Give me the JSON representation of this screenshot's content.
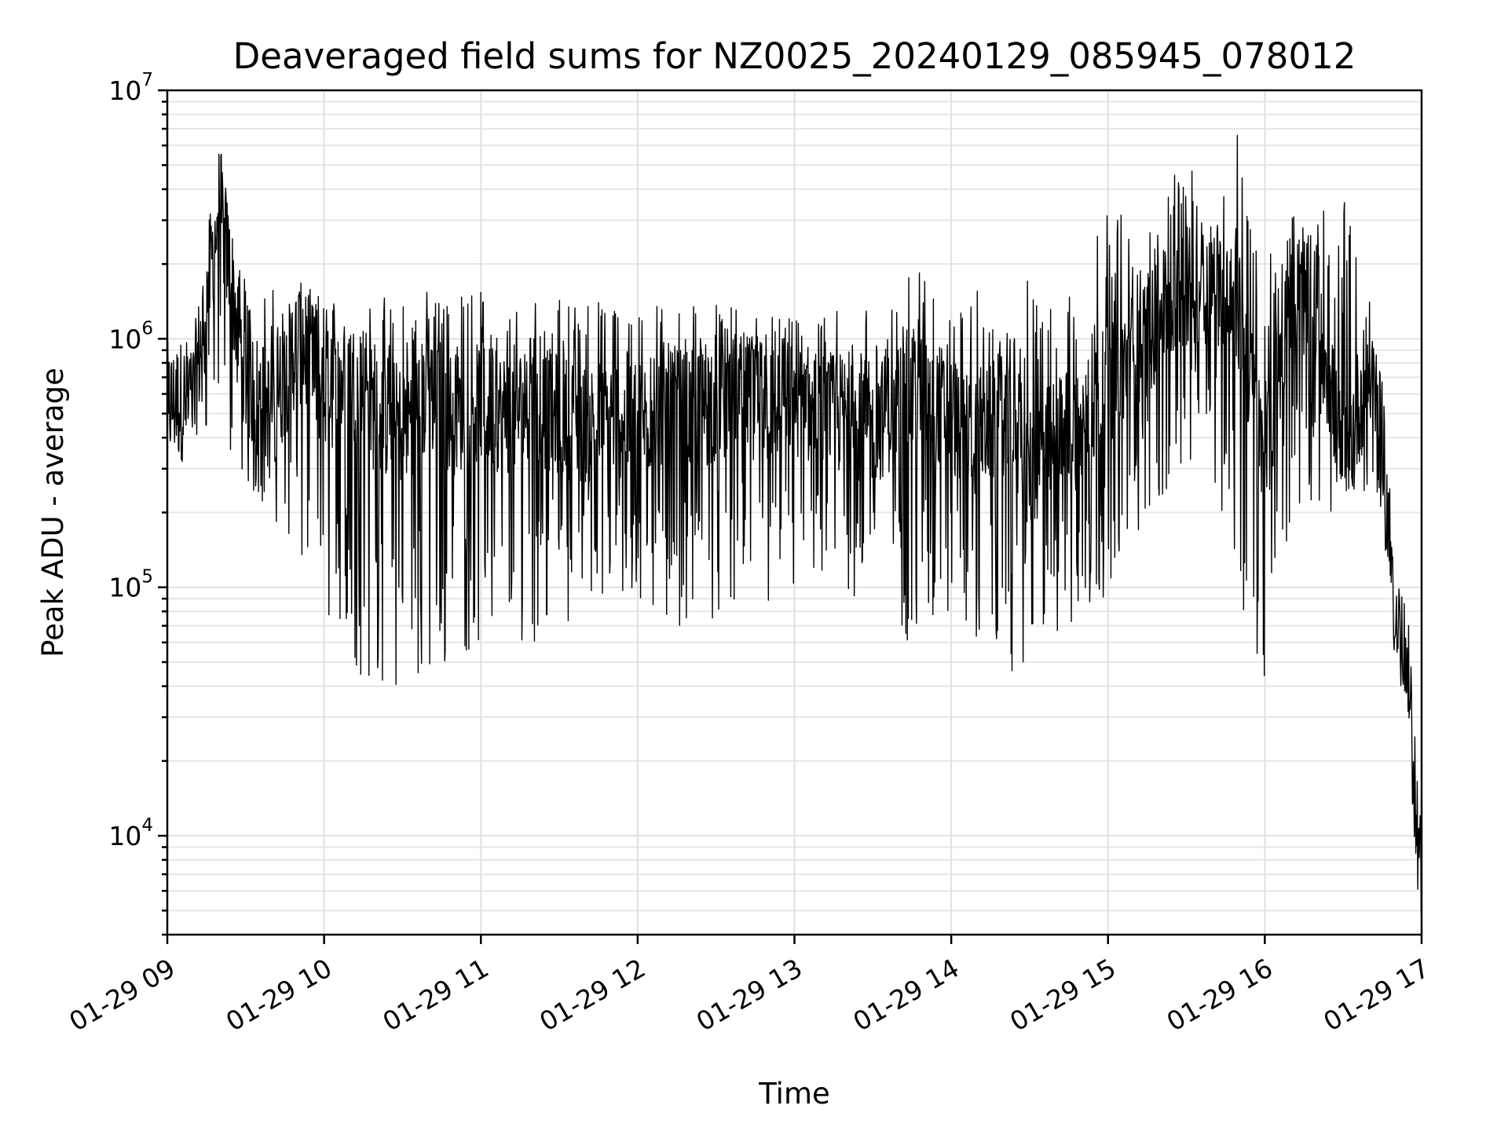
{
  "chart_data": {
    "type": "line",
    "title": "Deaveraged field sums for NZ0025_20240129_085945_078012",
    "xlabel": "Time",
    "ylabel": "Peak ADU - average",
    "yscale": "log",
    "ylim": [
      4000,
      10000000
    ],
    "xlim": [
      "2024-01-29 09:00",
      "2024-01-29 17:00"
    ],
    "grid": true,
    "x_ticks": [
      "01-29 09",
      "01-29 10",
      "01-29 11",
      "01-29 12",
      "01-29 13",
      "01-29 14",
      "01-29 15",
      "01-29 16",
      "01-29 17"
    ],
    "y_ticks": [
      {
        "value": 10000,
        "base": "10",
        "exp": "4"
      },
      {
        "value": 100000,
        "base": "10",
        "exp": "5"
      },
      {
        "value": 1000000,
        "base": "10",
        "exp": "6"
      },
      {
        "value": 10000000,
        "base": "10",
        "exp": "7"
      }
    ],
    "series": [
      {
        "color": "#000000",
        "x": [
          "2024-01-29 09:00",
          "2024-01-29 09:10",
          "2024-01-29 09:20",
          "2024-01-29 09:30",
          "2024-01-29 09:40",
          "2024-01-29 09:50",
          "2024-01-29 10:00",
          "2024-01-29 10:10",
          "2024-01-29 10:20",
          "2024-01-29 10:30",
          "2024-01-29 10:40",
          "2024-01-29 10:50",
          "2024-01-29 11:00",
          "2024-01-29 11:10",
          "2024-01-29 11:20",
          "2024-01-29 11:30",
          "2024-01-29 11:40",
          "2024-01-29 11:50",
          "2024-01-29 12:00",
          "2024-01-29 12:10",
          "2024-01-29 12:20",
          "2024-01-29 12:30",
          "2024-01-29 12:40",
          "2024-01-29 12:50",
          "2024-01-29 13:00",
          "2024-01-29 13:10",
          "2024-01-29 13:20",
          "2024-01-29 13:30",
          "2024-01-29 13:40",
          "2024-01-29 13:50",
          "2024-01-29 14:00",
          "2024-01-29 14:10",
          "2024-01-29 14:20",
          "2024-01-29 14:30",
          "2024-01-29 14:40",
          "2024-01-29 14:50",
          "2024-01-29 15:00",
          "2024-01-29 15:10",
          "2024-01-29 15:20",
          "2024-01-29 15:30",
          "2024-01-29 15:40",
          "2024-01-29 15:50",
          "2024-01-29 16:00",
          "2024-01-29 16:10",
          "2024-01-29 16:20",
          "2024-01-29 16:30",
          "2024-01-29 16:40",
          "2024-01-29 16:45",
          "2024-01-29 16:50",
          "2024-01-29 16:55",
          "2024-01-29 17:00"
        ],
        "y": [
          550000,
          580000,
          3500000,
          700000,
          500000,
          1000000,
          600000,
          700000,
          500000,
          450000,
          600000,
          500000,
          550000,
          500000,
          550000,
          500000,
          450000,
          500000,
          450000,
          550000,
          500000,
          550000,
          600000,
          550000,
          600000,
          500000,
          500000,
          450000,
          550000,
          600000,
          500000,
          400000,
          500000,
          300000,
          400000,
          450000,
          650000,
          900000,
          1200000,
          1600000,
          1700000,
          1300000,
          300000,
          1600000,
          1400000,
          300000,
          800000,
          350000,
          80000,
          40000,
          6000
        ],
        "y_low": [
          450000,
          420000,
          400000,
          250000,
          200000,
          120000,
          70000,
          45000,
          40000,
          38000,
          40000,
          50000,
          60000,
          60000,
          60000,
          70000,
          80000,
          90000,
          80000,
          70000,
          70000,
          75000,
          80000,
          80000,
          90000,
          90000,
          90000,
          80000,
          60000,
          60000,
          70000,
          60000,
          40000,
          50000,
          60000,
          60000,
          100000,
          150000,
          200000,
          300000,
          300000,
          80000,
          40000,
          200000,
          150000,
          250000,
          200000,
          200000,
          60000,
          30000,
          6000
        ],
        "y_high": [
          800000,
          1000000,
          3500000,
          1900000,
          1600000,
          1700000,
          1500000,
          1500000,
          1500000,
          1500000,
          1600000,
          1500000,
          1700000,
          1400000,
          1500000,
          1500000,
          1500000,
          1400000,
          1500000,
          1500000,
          1400000,
          1400000,
          1300000,
          1300000,
          1200000,
          1200000,
          1600000,
          1300000,
          1400000,
          2600000,
          1200000,
          1600000,
          1000000,
          1800000,
          1400000,
          1700000,
          4000000,
          2700000,
          4500000,
          5000000,
          4000000,
          7200000,
          2000000,
          3200000,
          3000000,
          4800000,
          1600000,
          800000,
          80000,
          40000,
          6000
        ]
      }
    ]
  }
}
